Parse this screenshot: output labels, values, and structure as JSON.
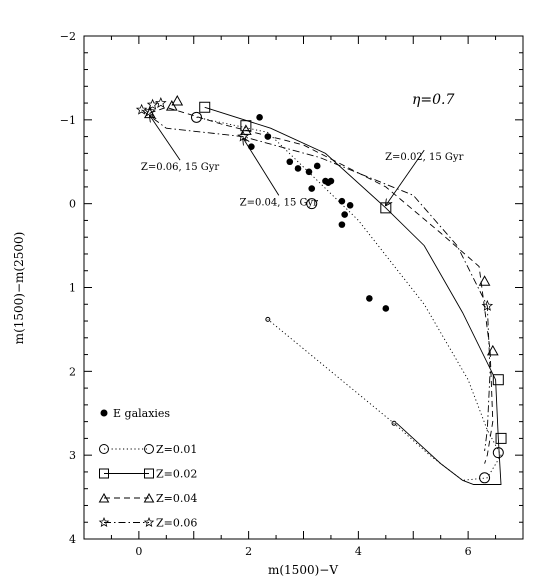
{
  "chart_data": {
    "type": "scatter",
    "xlabel": "m(1500)−V",
    "ylabel": "m(1500)−m(2500)",
    "xlim": [
      -1,
      7
    ],
    "ylim": [
      4,
      -2
    ],
    "y_inverted": true,
    "grid": false,
    "xticks": [
      {
        "value": 0,
        "label": "0"
      },
      {
        "value": 2,
        "label": "2"
      },
      {
        "value": 4,
        "label": "4"
      },
      {
        "value": 6,
        "label": "6"
      }
    ],
    "yticks": [
      {
        "value": -2,
        "label": "−2"
      },
      {
        "value": -1,
        "label": "−1"
      },
      {
        "value": 0,
        "label": "0"
      },
      {
        "value": 1,
        "label": "1"
      },
      {
        "value": 2,
        "label": "2"
      },
      {
        "value": 3,
        "label": "3"
      },
      {
        "value": 4,
        "label": "4"
      }
    ],
    "eta_label": "η=0.7",
    "legend_position": "lower-left",
    "observations": {
      "name": "E galaxies",
      "x": [
        2.2,
        2.35,
        2.05,
        2.75,
        2.9,
        3.1,
        3.15,
        3.25,
        3.4,
        3.45,
        3.5,
        3.7,
        3.75,
        3.85,
        3.7,
        4.2,
        4.5
      ],
      "y": [
        -1.03,
        -0.8,
        -0.68,
        -0.5,
        -0.42,
        -0.38,
        -0.18,
        -0.45,
        -0.27,
        -0.25,
        -0.27,
        -0.03,
        0.13,
        0.02,
        0.25,
        1.13,
        1.25
      ]
    },
    "series": [
      {
        "name": "Z=0.01",
        "marker": "circle",
        "line": "dotted",
        "x": [
          1.05,
          2.35,
          4.0,
          5.2,
          6.0,
          6.35,
          6.6,
          6.35,
          5.9,
          5.3,
          4.65,
          2.35
        ],
        "y": [
          -1.03,
          -0.85,
          0.2,
          1.2,
          2.1,
          2.7,
          3.0,
          3.27,
          3.3,
          3.0,
          2.62,
          1.38
        ],
        "open_markers": [
          [
            1.05,
            -1.03
          ],
          [
            3.15,
            0.0
          ],
          [
            6.55,
            2.97
          ],
          [
            6.3,
            3.27
          ]
        ],
        "small_markers": [
          [
            2.35,
            1.38
          ],
          [
            4.65,
            2.62
          ]
        ]
      },
      {
        "name": "Z=0.02",
        "marker": "square",
        "line": "solid",
        "x": [
          1.2,
          2.4,
          3.4,
          4.5,
          5.2,
          5.9,
          6.5,
          6.55,
          6.6,
          6.5,
          6.1,
          5.9,
          5.5,
          4.7
        ],
        "y": [
          -1.15,
          -0.9,
          -0.6,
          0.05,
          0.5,
          1.3,
          2.1,
          2.8,
          3.35,
          3.35,
          3.35,
          3.3,
          3.1,
          2.62
        ],
        "open_markers": [
          [
            1.2,
            -1.15
          ],
          [
            1.95,
            -0.93
          ],
          [
            4.5,
            0.05
          ],
          [
            6.55,
            2.1
          ],
          [
            6.6,
            2.8
          ]
        ]
      },
      {
        "name": "Z=0.04",
        "marker": "triangle",
        "line": "dashed",
        "x": [
          0.2,
          0.5,
          1.5,
          3.0,
          4.5,
          5.5,
          6.2,
          6.4,
          6.45,
          6.35,
          6.3
        ],
        "y": [
          -1.08,
          -1.15,
          -0.95,
          -0.7,
          -0.2,
          0.35,
          0.75,
          1.75,
          2.6,
          3.0,
          3.1
        ],
        "open_markers": [
          [
            0.2,
            -1.08
          ],
          [
            0.6,
            -1.17
          ],
          [
            0.7,
            -1.23
          ],
          [
            1.95,
            -0.88
          ],
          [
            6.3,
            0.92
          ],
          [
            6.45,
            1.75
          ]
        ]
      },
      {
        "name": "Z=0.06",
        "marker": "star",
        "line": "dashdot",
        "x": [
          0.05,
          0.5,
          1.9,
          3.3,
          5.0,
          5.8,
          6.35,
          6.4,
          6.35,
          6.3
        ],
        "y": [
          -1.12,
          -0.9,
          -0.8,
          -0.55,
          -0.1,
          0.5,
          1.22,
          2.0,
          2.7,
          2.95
        ],
        "open_markers": [
          [
            0.05,
            -1.12
          ],
          [
            0.2,
            -1.1
          ],
          [
            0.25,
            -1.18
          ],
          [
            0.4,
            -1.2
          ],
          [
            1.9,
            -0.8
          ],
          [
            6.35,
            1.22
          ]
        ]
      }
    ],
    "annotations": [
      {
        "text": "Z=0.06, 15 Gyr",
        "label_x": 0.75,
        "label_y": -0.4,
        "point_x": 0.2,
        "point_y": -1.05
      },
      {
        "text": "Z=0.04, 15 Gyr",
        "label_x": 2.55,
        "label_y": 0.02,
        "point_x": 1.9,
        "point_y": -0.78
      },
      {
        "text": "Z=0.02, 15 Gyr",
        "label_x": 5.2,
        "label_y": -0.52,
        "point_x": 4.5,
        "point_y": 0.02
      }
    ]
  }
}
